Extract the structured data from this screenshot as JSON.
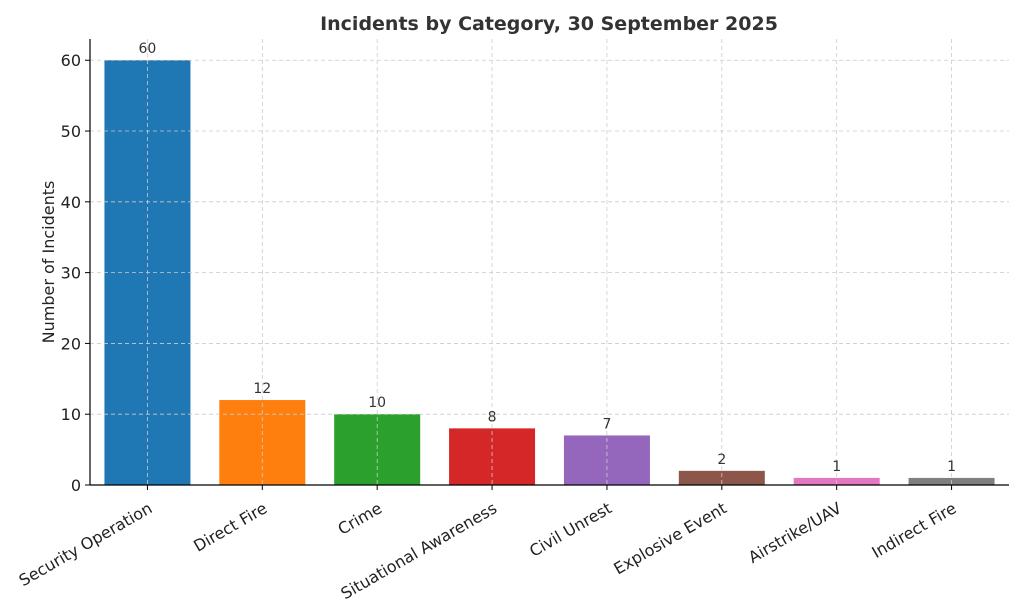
{
  "chart_data": {
    "type": "bar",
    "title": "Incidents by Category, 30 September 2025",
    "xlabel": "",
    "ylabel": "Number of Incidents",
    "ylim": [
      0,
      63
    ],
    "yticks": [
      0,
      10,
      20,
      30,
      40,
      50,
      60
    ],
    "grid": true,
    "categories": [
      "Security Operation",
      "Direct Fire",
      "Crime",
      "Situational Awareness",
      "Civil Unrest",
      "Explosive Event",
      "Airstrike/UAV",
      "Indirect Fire"
    ],
    "values": [
      60,
      12,
      10,
      8,
      7,
      2,
      1,
      1
    ],
    "colors": [
      "#1f77b4",
      "#ff7f0e",
      "#2ca02c",
      "#d62728",
      "#9467bd",
      "#8c564b",
      "#e377c2",
      "#7f7f7f"
    ]
  }
}
